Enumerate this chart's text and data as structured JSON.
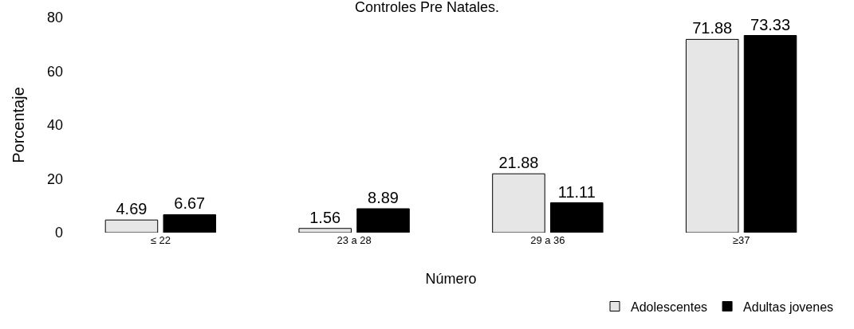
{
  "chart_data": {
    "type": "bar",
    "title": "Controles Pre Natales.",
    "xlabel": "Número",
    "ylabel": "Porcentaje",
    "categories": [
      "≤ 22",
      "23 a 28",
      "29 a 36",
      "≥37"
    ],
    "series": [
      {
        "name": "Adolescentes",
        "color": "#e6e6e6",
        "values": [
          4.69,
          1.56,
          21.88,
          71.88
        ]
      },
      {
        "name": "Adultas jovenes",
        "color": "#000000",
        "values": [
          6.67,
          8.89,
          11.11,
          73.33
        ]
      }
    ],
    "ylim": [
      0,
      80
    ],
    "yticks": [
      0,
      20,
      40,
      60,
      80
    ],
    "data_labels": true,
    "grid": false,
    "legend": "bottom right"
  }
}
